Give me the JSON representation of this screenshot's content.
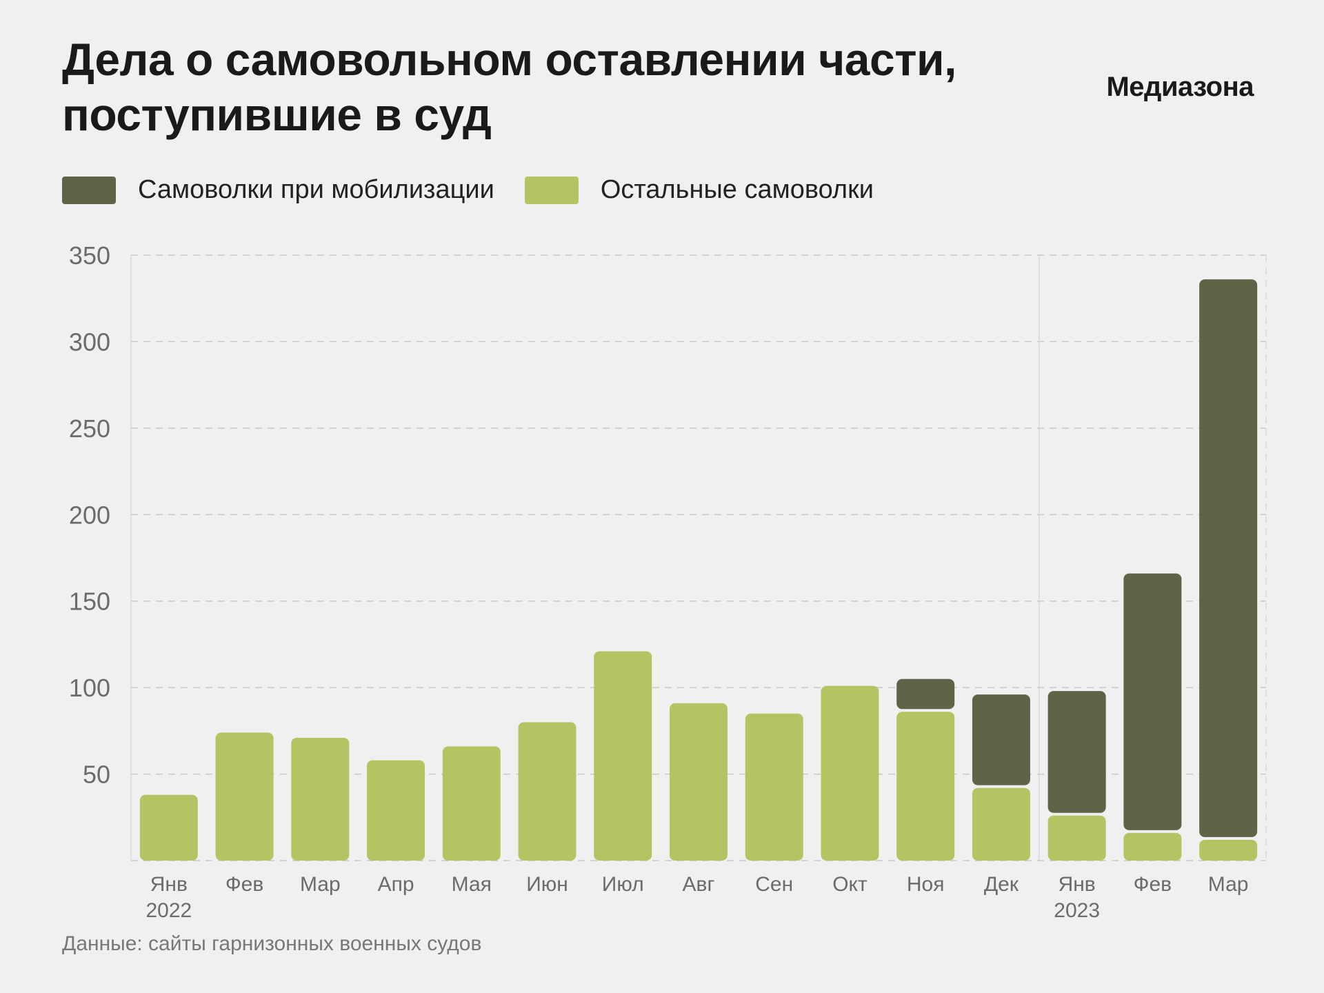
{
  "header": {
    "title_line1": "Дела о самовольном оставлении части,",
    "title_line2": "поступившие в суд",
    "brand": "Медиазона"
  },
  "colors": {
    "mobilization": "#5e6446",
    "other": "#b3c462",
    "grid": "#c8c8c8",
    "axis_text": "#6b6b6b"
  },
  "chart_data": {
    "type": "bar",
    "stacked": true,
    "categories": [
      "Янв",
      "Фев",
      "Мар",
      "Апр",
      "Мая",
      "Июн",
      "Июл",
      "Авг",
      "Сен",
      "Окт",
      "Ноя",
      "Дек",
      "Янв",
      "Фев",
      "Мар"
    ],
    "year_labels": [
      {
        "index": 0,
        "label": "2022"
      },
      {
        "index": 12,
        "label": "2023"
      }
    ],
    "series": [
      {
        "name": "Остальные самоволки",
        "values": [
          38,
          74,
          71,
          58,
          66,
          80,
          121,
          91,
          85,
          101,
          86,
          42,
          26,
          16,
          12
        ]
      },
      {
        "name": "Самоволки при мобилизации",
        "values": [
          0,
          0,
          0,
          0,
          0,
          0,
          0,
          0,
          0,
          0,
          19,
          54,
          72,
          150,
          324
        ]
      }
    ],
    "ylim": [
      0,
      350
    ],
    "yticks": [
      50,
      100,
      150,
      200,
      250,
      300,
      350
    ],
    "grid": true,
    "legend_position": "top-left"
  },
  "legend": [
    {
      "label": "Самоволки при мобилизации",
      "color": "#5e6446"
    },
    {
      "label": "Остальные самоволки",
      "color": "#b3c462"
    }
  ],
  "source": "Данные: сайты гарнизонных военных судов"
}
